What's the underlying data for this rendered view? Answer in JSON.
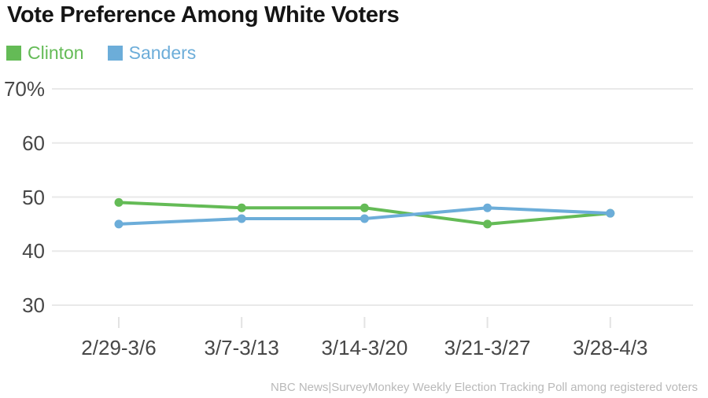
{
  "chart_data": {
    "type": "line",
    "title": "Vote Preference Among White Voters",
    "categories": [
      "2/29-3/6",
      "3/7-3/13",
      "3/14-3/20",
      "3/21-3/27",
      "3/28-4/3"
    ],
    "series": [
      {
        "name": "Clinton",
        "color": "#64bb56",
        "values": [
          49,
          48,
          48,
          45,
          47
        ]
      },
      {
        "name": "Sanders",
        "color": "#6cadd9",
        "values": [
          45,
          46,
          46,
          48,
          47
        ]
      }
    ],
    "y_axis": {
      "ticks": [
        70,
        60,
        50,
        40,
        30
      ],
      "tick_labels": [
        "70%",
        "60",
        "50",
        "40",
        "30"
      ]
    },
    "grid": "horizontal",
    "legend_position": "top-left",
    "source_note": "NBC News|SurveyMonkey Weekly Election Tracking Poll among registered voters"
  },
  "colors": {
    "background": "#ffffff",
    "title_text": "#151515",
    "axis_text": "#474747",
    "gridline": "#e9e9e9",
    "tick": "#e3e3e3",
    "source_text": "#b9b9b9"
  }
}
